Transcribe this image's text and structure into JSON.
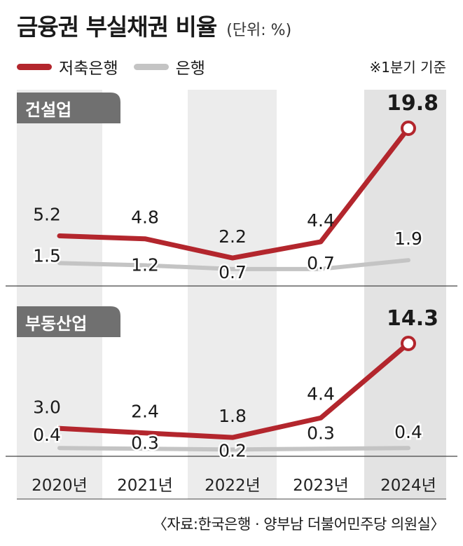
{
  "header": {
    "title": "금융권 부실채권 비율",
    "unit": "(단위: %)",
    "note": "※1분기 기준"
  },
  "legend": [
    {
      "label": "저축은행",
      "color": "#b3262d"
    },
    {
      "label": "은행",
      "color": "#c4c4c4"
    }
  ],
  "source": "〈자료:한국은행 · 양부남 더불어민주당 의원실〉",
  "colors": {
    "savings": "#b3262d",
    "bank": "#c4c4c4",
    "panel_label_bg": "#707070",
    "band": "#ececec",
    "highlight": "#e3e3e3"
  },
  "chart_data": [
    {
      "type": "line",
      "panel_label": "건설업",
      "categories": [
        "2020년",
        "2021년",
        "2022년",
        "2023년",
        "2024년"
      ],
      "series": [
        {
          "name": "저축은행",
          "values": [
            5.2,
            4.8,
            2.2,
            4.4,
            19.8
          ]
        },
        {
          "name": "은행",
          "values": [
            1.5,
            1.2,
            0.7,
            0.7,
            1.9
          ]
        }
      ]
    },
    {
      "type": "line",
      "panel_label": "부동산업",
      "categories": [
        "2020년",
        "2021년",
        "2022년",
        "2023년",
        "2024년"
      ],
      "series": [
        {
          "name": "저축은행",
          "values": [
            3.0,
            2.4,
            1.8,
            4.4,
            14.3
          ]
        },
        {
          "name": "은행",
          "values": [
            0.4,
            0.3,
            0.2,
            0.3,
            0.4
          ]
        }
      ]
    }
  ]
}
